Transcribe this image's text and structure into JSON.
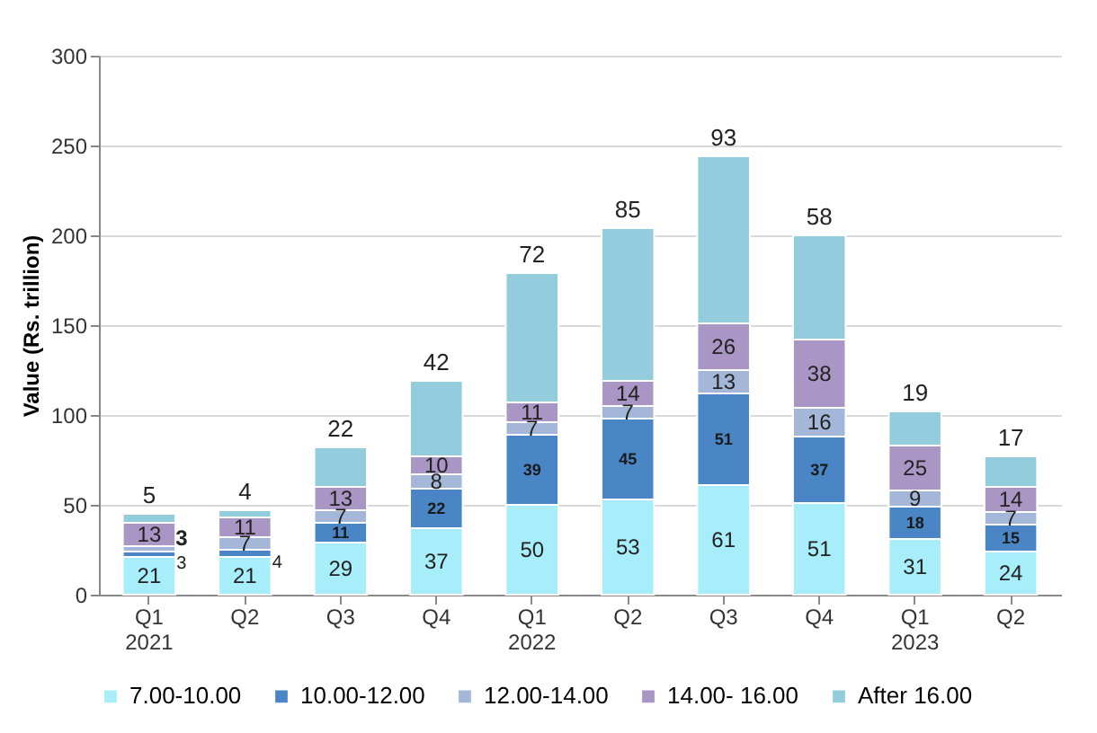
{
  "chart_data": {
    "type": "bar",
    "stacked": true,
    "categories": [
      "Q1\n2021",
      "Q2",
      "Q3",
      "Q4",
      "Q1\n2022",
      "Q2",
      "Q3",
      "Q4",
      "Q1\n2023",
      "Q2"
    ],
    "ylabel": "Value  (Rs. trillion)",
    "ylim": [
      0,
      300
    ],
    "yticks": [
      0,
      50,
      100,
      150,
      200,
      250,
      300
    ],
    "grid": "y",
    "legend": "bottom",
    "data_labels": true,
    "series": [
      {
        "name": "7.00-10.00",
        "color": "#a8edfa",
        "values": [
          21,
          21,
          29,
          37,
          50,
          53,
          61,
          51,
          31,
          24
        ]
      },
      {
        "name": "10.00-12.00",
        "color": "#4a86c5",
        "values": [
          3,
          4,
          11,
          22,
          39,
          45,
          51,
          37,
          18,
          15
        ]
      },
      {
        "name": "12.00-14.00",
        "color": "#a5b7d9",
        "values": [
          3,
          7,
          7,
          8,
          7,
          7,
          13,
          16,
          9,
          7
        ]
      },
      {
        "name": "14.00- 16.00",
        "color": "#a996c4",
        "values": [
          13,
          11,
          13,
          10,
          11,
          14,
          26,
          38,
          25,
          14
        ]
      },
      {
        "name": "After 16.00",
        "color": "#93cddd",
        "values": [
          5,
          4,
          22,
          42,
          72,
          85,
          93,
          58,
          19,
          17
        ]
      }
    ]
  }
}
